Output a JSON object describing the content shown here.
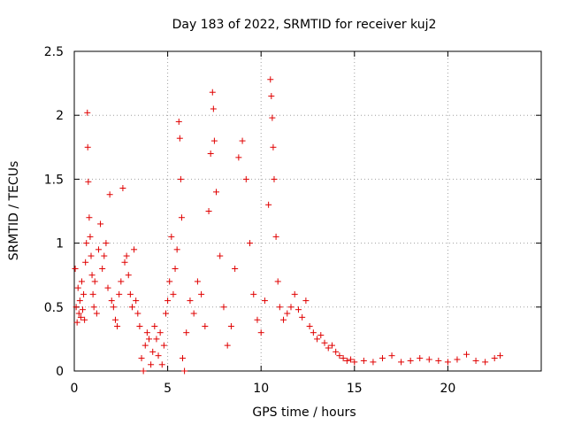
{
  "chart_data": {
    "type": "scatter",
    "title": "Day 183 of 2022, SRMTID for receiver kuj2",
    "xlabel": "GPS time / hours",
    "ylabel": "SRMTID / TECUs",
    "xlim": [
      0,
      25
    ],
    "ylim": [
      0,
      2.5
    ],
    "xticks": [
      0,
      5,
      10,
      15,
      20
    ],
    "yticks": [
      0,
      0.5,
      1,
      1.5,
      2,
      2.5
    ],
    "ytick_labels": [
      "0",
      "0.5",
      "1",
      "1.5",
      "2",
      "2.5"
    ],
    "grid": true,
    "marker": "+",
    "color": "#e00000",
    "series": [
      {
        "name": "SRMTID",
        "points": [
          [
            0.05,
            0.8
          ],
          [
            0.1,
            0.5
          ],
          [
            0.15,
            0.38
          ],
          [
            0.2,
            0.65
          ],
          [
            0.25,
            0.45
          ],
          [
            0.3,
            0.55
          ],
          [
            0.35,
            0.42
          ],
          [
            0.4,
            0.7
          ],
          [
            0.45,
            0.48
          ],
          [
            0.5,
            0.6
          ],
          [
            0.55,
            0.4
          ],
          [
            0.6,
            0.85
          ],
          [
            0.65,
            1.0
          ],
          [
            0.7,
            2.02
          ],
          [
            0.72,
            1.75
          ],
          [
            0.75,
            1.48
          ],
          [
            0.8,
            1.2
          ],
          [
            0.85,
            1.05
          ],
          [
            0.9,
            0.9
          ],
          [
            0.95,
            0.75
          ],
          [
            1.0,
            0.6
          ],
          [
            1.05,
            0.5
          ],
          [
            1.1,
            0.7
          ],
          [
            1.2,
            0.45
          ],
          [
            1.3,
            0.95
          ],
          [
            1.4,
            1.15
          ],
          [
            1.5,
            0.8
          ],
          [
            1.6,
            0.9
          ],
          [
            1.7,
            1.0
          ],
          [
            1.8,
            0.65
          ],
          [
            1.9,
            1.38
          ],
          [
            2.0,
            0.55
          ],
          [
            2.1,
            0.5
          ],
          [
            2.2,
            0.4
          ],
          [
            2.3,
            0.35
          ],
          [
            2.4,
            0.6
          ],
          [
            2.5,
            0.7
          ],
          [
            2.6,
            1.43
          ],
          [
            2.7,
            0.85
          ],
          [
            2.8,
            0.9
          ],
          [
            2.9,
            0.75
          ],
          [
            3.0,
            0.6
          ],
          [
            3.1,
            0.5
          ],
          [
            3.2,
            0.95
          ],
          [
            3.3,
            0.55
          ],
          [
            3.4,
            0.45
          ],
          [
            3.5,
            0.35
          ],
          [
            3.6,
            0.1
          ],
          [
            3.7,
            0.0
          ],
          [
            3.8,
            0.2
          ],
          [
            3.9,
            0.3
          ],
          [
            4.0,
            0.25
          ],
          [
            4.1,
            0.05
          ],
          [
            4.2,
            0.15
          ],
          [
            4.3,
            0.35
          ],
          [
            4.4,
            0.25
          ],
          [
            4.5,
            0.12
          ],
          [
            4.6,
            0.3
          ],
          [
            4.7,
            0.05
          ],
          [
            4.8,
            0.2
          ],
          [
            4.9,
            0.45
          ],
          [
            5.0,
            0.55
          ],
          [
            5.1,
            0.7
          ],
          [
            5.2,
            1.05
          ],
          [
            5.3,
            0.6
          ],
          [
            5.4,
            0.8
          ],
          [
            5.5,
            0.95
          ],
          [
            5.6,
            1.95
          ],
          [
            5.65,
            1.82
          ],
          [
            5.7,
            1.5
          ],
          [
            5.75,
            1.2
          ],
          [
            5.8,
            0.1
          ],
          [
            5.9,
            0.0
          ],
          [
            6.0,
            0.3
          ],
          [
            6.2,
            0.55
          ],
          [
            6.4,
            0.45
          ],
          [
            6.6,
            0.7
          ],
          [
            6.8,
            0.6
          ],
          [
            7.0,
            0.35
          ],
          [
            7.2,
            1.25
          ],
          [
            7.3,
            1.7
          ],
          [
            7.4,
            2.18
          ],
          [
            7.45,
            2.05
          ],
          [
            7.5,
            1.8
          ],
          [
            7.6,
            1.4
          ],
          [
            7.8,
            0.9
          ],
          [
            8.0,
            0.5
          ],
          [
            8.2,
            0.2
          ],
          [
            8.4,
            0.35
          ],
          [
            8.6,
            0.8
          ],
          [
            8.8,
            1.67
          ],
          [
            9.0,
            1.8
          ],
          [
            9.2,
            1.5
          ],
          [
            9.4,
            1.0
          ],
          [
            9.6,
            0.6
          ],
          [
            9.8,
            0.4
          ],
          [
            10.0,
            0.3
          ],
          [
            10.2,
            0.55
          ],
          [
            10.4,
            1.3
          ],
          [
            10.5,
            2.28
          ],
          [
            10.55,
            2.15
          ],
          [
            10.6,
            1.98
          ],
          [
            10.65,
            1.75
          ],
          [
            10.7,
            1.5
          ],
          [
            10.8,
            1.05
          ],
          [
            10.9,
            0.7
          ],
          [
            11.0,
            0.5
          ],
          [
            11.2,
            0.4
          ],
          [
            11.4,
            0.45
          ],
          [
            11.6,
            0.5
          ],
          [
            11.8,
            0.6
          ],
          [
            12.0,
            0.48
          ],
          [
            12.2,
            0.42
          ],
          [
            12.4,
            0.55
          ],
          [
            12.6,
            0.35
          ],
          [
            12.8,
            0.3
          ],
          [
            13.0,
            0.25
          ],
          [
            13.2,
            0.28
          ],
          [
            13.4,
            0.22
          ],
          [
            13.6,
            0.18
          ],
          [
            13.8,
            0.2
          ],
          [
            14.0,
            0.15
          ],
          [
            14.2,
            0.12
          ],
          [
            14.4,
            0.1
          ],
          [
            14.6,
            0.08
          ],
          [
            14.8,
            0.09
          ],
          [
            15.0,
            0.07
          ],
          [
            15.5,
            0.08
          ],
          [
            16.0,
            0.07
          ],
          [
            16.5,
            0.1
          ],
          [
            17.0,
            0.12
          ],
          [
            17.5,
            0.07
          ],
          [
            18.0,
            0.08
          ],
          [
            18.5,
            0.1
          ],
          [
            19.0,
            0.09
          ],
          [
            19.5,
            0.08
          ],
          [
            20.0,
            0.07
          ],
          [
            20.5,
            0.09
          ],
          [
            21.0,
            0.13
          ],
          [
            21.5,
            0.08
          ],
          [
            22.0,
            0.07
          ],
          [
            22.5,
            0.1
          ],
          [
            22.8,
            0.12
          ]
        ]
      }
    ]
  }
}
